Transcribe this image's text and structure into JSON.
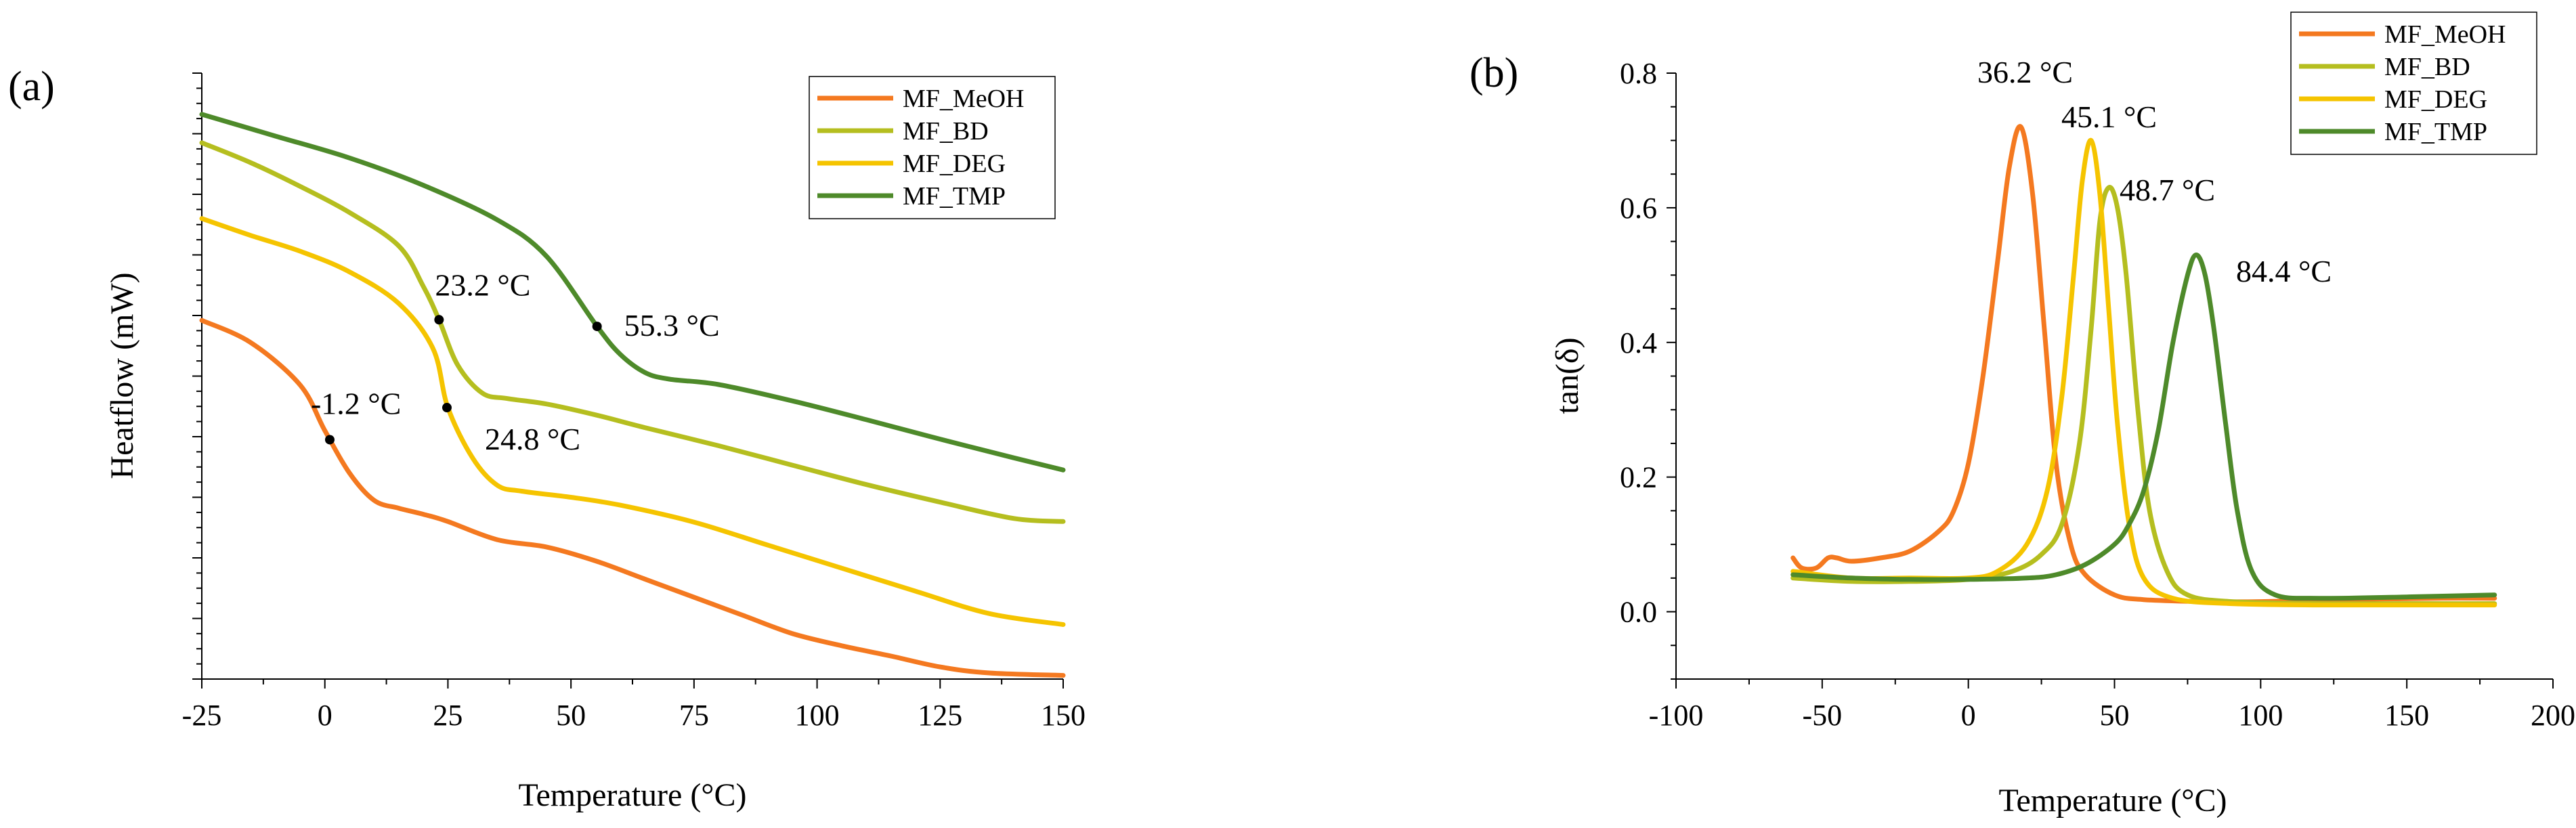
{
  "colors": {
    "MF_MeOH": "#F47920",
    "MF_BD": "#B5BE1F",
    "MF_DEG": "#F5C400",
    "MF_TMP": "#4E8A2A",
    "axis": "#000000"
  },
  "chart_data": [
    {
      "panel_label": "(a)",
      "type": "line",
      "title": "",
      "xlabel": "Temperature (°C)",
      "ylabel": "Heatflow (mW)",
      "xlim": [
        -25,
        150
      ],
      "ylim": [
        0,
        100
      ],
      "xticks": [
        -25,
        0,
        25,
        50,
        75,
        100,
        125,
        150
      ],
      "xtick_labels": [
        "-25",
        "0",
        "25",
        "50",
        "75",
        "100",
        "125",
        "150"
      ],
      "y_tick_labels_shown": false,
      "legend_position": "top-right",
      "legend": [
        "MF_MeOH",
        "MF_BD",
        "MF_DEG",
        "MF_TMP"
      ],
      "series": [
        {
          "name": "MF_MeOH",
          "color": "#F47920",
          "x": [
            -25,
            -15,
            -5,
            0,
            5,
            10,
            15,
            20,
            25,
            35,
            45,
            55,
            65,
            75,
            85,
            95,
            105,
            115,
            125,
            135,
            150
          ],
          "y": [
            59.2,
            55.5,
            48.5,
            41,
            34,
            29.5,
            28.2,
            27.2,
            26,
            23,
            21.8,
            19.5,
            16.5,
            13.5,
            10.5,
            7.5,
            5.5,
            3.8,
            2,
            1.0,
            0.6
          ]
        },
        {
          "name": "MF_DEG",
          "color": "#F5C400",
          "x": [
            -25,
            -15,
            -5,
            5,
            15,
            22,
            25,
            30,
            35,
            40,
            50,
            60,
            75,
            90,
            105,
            120,
            135,
            150
          ],
          "y": [
            76,
            73.2,
            70.6,
            67.2,
            62,
            54.5,
            44.8,
            36.5,
            32,
            31.0,
            30.0,
            28.7,
            25.9,
            22.1,
            18.3,
            14.5,
            10.8,
            9.0
          ]
        },
        {
          "name": "MF_BD",
          "color": "#B5BE1F",
          "x": [
            -25,
            -15,
            -5,
            5,
            15,
            20,
            23.2,
            27,
            32,
            37,
            45,
            55,
            65,
            80,
            95,
            110,
            125,
            140,
            150
          ],
          "y": [
            88.5,
            85.2,
            81.3,
            77,
            71.5,
            64.8,
            59.3,
            51.8,
            47.2,
            46.3,
            45.4,
            43.6,
            41.5,
            38.5,
            35.3,
            32.1,
            29.2,
            26.5,
            26.0
          ]
        },
        {
          "name": "MF_TMP",
          "color": "#4E8A2A",
          "x": [
            -25,
            -10,
            5,
            20,
            35,
            45,
            55.3,
            60,
            65,
            70,
            80,
            95,
            110,
            125,
            140,
            150
          ],
          "y": [
            93.2,
            89.6,
            86.0,
            81.5,
            75.8,
            69.8,
            58.2,
            53.6,
            50.6,
            49.5,
            48.6,
            45.9,
            42.8,
            39.6,
            36.5,
            34.5
          ]
        }
      ],
      "annotations": [
        {
          "series": "MF_MeOH",
          "x": 1,
          "y": 39.5,
          "text": "-1.2 °C"
        },
        {
          "series": "MF_BD",
          "x": 23.2,
          "y": 59.3,
          "text": "23.2 °C"
        },
        {
          "series": "MF_DEG",
          "x": 24.8,
          "y": 44.8,
          "text": "24.8 °C"
        },
        {
          "series": "MF_TMP",
          "x": 55.3,
          "y": 58.2,
          "text": "55.3 °C"
        }
      ]
    },
    {
      "panel_label": "(b)",
      "type": "line",
      "title": "",
      "xlabel": "Temperature (°C)",
      "ylabel": "tan(δ)",
      "xlim": [
        -100,
        200
      ],
      "ylim": [
        -0.1,
        0.8
      ],
      "xticks": [
        -100,
        -50,
        0,
        50,
        100,
        150,
        200
      ],
      "xtick_labels": [
        "-100",
        "-50",
        "0",
        "50",
        "100",
        "150",
        "200"
      ],
      "yticks": [
        0.0,
        0.2,
        0.4,
        0.6,
        0.8
      ],
      "ytick_labels": [
        "0.0",
        "0.2",
        "0.4",
        "0.6",
        "0.8"
      ],
      "legend_position": "top-right",
      "legend": [
        "MF_MeOH",
        "MF_BD",
        "MF_DEG",
        "MF_TMP"
      ],
      "series": [
        {
          "name": "MF_MeOH",
          "color": "#F47920",
          "x": [
            -60,
            -57,
            -52,
            -48,
            -45,
            -40,
            -30,
            -20,
            -10,
            -5,
            0,
            5,
            10,
            14,
            18,
            22,
            26,
            30,
            35,
            40,
            50,
            60,
            80,
            100,
            130,
            160,
            180
          ],
          "y": [
            0.08,
            0.065,
            0.065,
            0.08,
            0.08,
            0.075,
            0.08,
            0.09,
            0.12,
            0.15,
            0.22,
            0.35,
            0.52,
            0.66,
            0.72,
            0.62,
            0.42,
            0.22,
            0.1,
            0.055,
            0.025,
            0.018,
            0.015,
            0.015,
            0.018,
            0.02,
            0.02
          ]
        },
        {
          "name": "MF_BD",
          "color": "#B5BE1F",
          "x": [
            -60,
            -40,
            -20,
            0,
            15,
            25,
            32,
            38,
            42,
            45,
            48,
            51,
            54,
            58,
            62,
            68,
            75,
            90,
            120,
            150,
            180
          ],
          "y": [
            0.05,
            0.045,
            0.045,
            0.048,
            0.06,
            0.085,
            0.13,
            0.25,
            0.42,
            0.58,
            0.63,
            0.6,
            0.5,
            0.3,
            0.15,
            0.06,
            0.025,
            0.015,
            0.012,
            0.012,
            0.012
          ]
        },
        {
          "name": "MF_DEG",
          "color": "#F5C400",
          "x": [
            -60,
            -40,
            -20,
            0,
            10,
            20,
            27,
            32,
            36,
            39,
            42,
            45,
            48,
            51,
            55,
            60,
            70,
            90,
            120,
            150,
            180
          ],
          "y": [
            0.06,
            0.05,
            0.05,
            0.05,
            0.06,
            0.1,
            0.18,
            0.32,
            0.5,
            0.64,
            0.7,
            0.62,
            0.45,
            0.28,
            0.13,
            0.05,
            0.02,
            0.012,
            0.01,
            0.01,
            0.01
          ]
        },
        {
          "name": "MF_TMP",
          "color": "#4E8A2A",
          "x": [
            -60,
            -40,
            -20,
            0,
            20,
            30,
            40,
            50,
            55,
            60,
            65,
            70,
            75,
            78,
            81,
            84,
            88,
            92,
            97,
            105,
            120,
            150,
            180
          ],
          "y": [
            0.055,
            0.05,
            0.048,
            0.048,
            0.05,
            0.055,
            0.07,
            0.1,
            0.13,
            0.18,
            0.27,
            0.4,
            0.5,
            0.53,
            0.5,
            0.42,
            0.28,
            0.15,
            0.06,
            0.025,
            0.02,
            0.022,
            0.025
          ]
        }
      ],
      "annotations": [
        {
          "series": "MF_MeOH",
          "text": "36.2 °C"
        },
        {
          "series": "MF_DEG",
          "text": "45.1 °C"
        },
        {
          "series": "MF_BD",
          "text": "48.7 °C"
        },
        {
          "series": "MF_TMP",
          "text": "84.4 °C"
        }
      ]
    }
  ]
}
